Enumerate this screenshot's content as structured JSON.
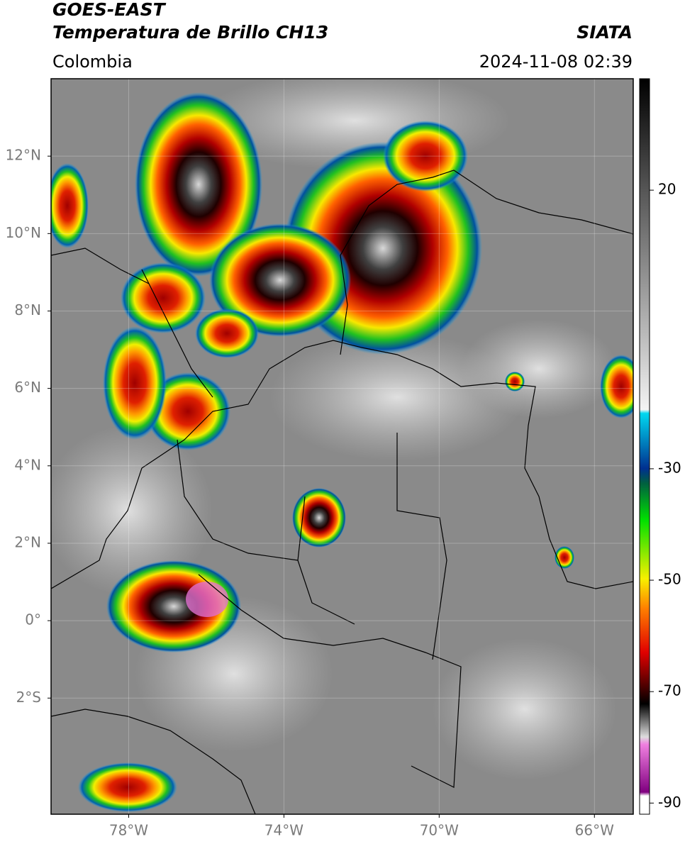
{
  "header": {
    "satellite": "GOES-EAST",
    "product": "Temperatura de Brillo CH13",
    "source": "SIATA",
    "region": "Colombia",
    "datetime": "2024-11-08 02:39"
  },
  "map": {
    "xlim": [
      -80,
      -65
    ],
    "ylim": [
      -5,
      14
    ],
    "xticks": [
      {
        "value": -78,
        "label": "78°W"
      },
      {
        "value": -74,
        "label": "74°W"
      },
      {
        "value": -70,
        "label": "70°W"
      },
      {
        "value": -66,
        "label": "66°W"
      }
    ],
    "yticks": [
      {
        "value": 12,
        "label": "12°N"
      },
      {
        "value": 10,
        "label": "10°N"
      },
      {
        "value": 8,
        "label": "8°N"
      },
      {
        "value": 6,
        "label": "6°N"
      },
      {
        "value": 4,
        "label": "4°N"
      },
      {
        "value": 2,
        "label": "2°N"
      },
      {
        "value": 0,
        "label": "0°"
      },
      {
        "value": -2,
        "label": "2°S"
      }
    ],
    "grid": true
  },
  "colorbar": {
    "lim": [
      -92,
      40
    ],
    "ticks": [
      20,
      -30,
      -50,
      -70,
      -90
    ]
  }
}
